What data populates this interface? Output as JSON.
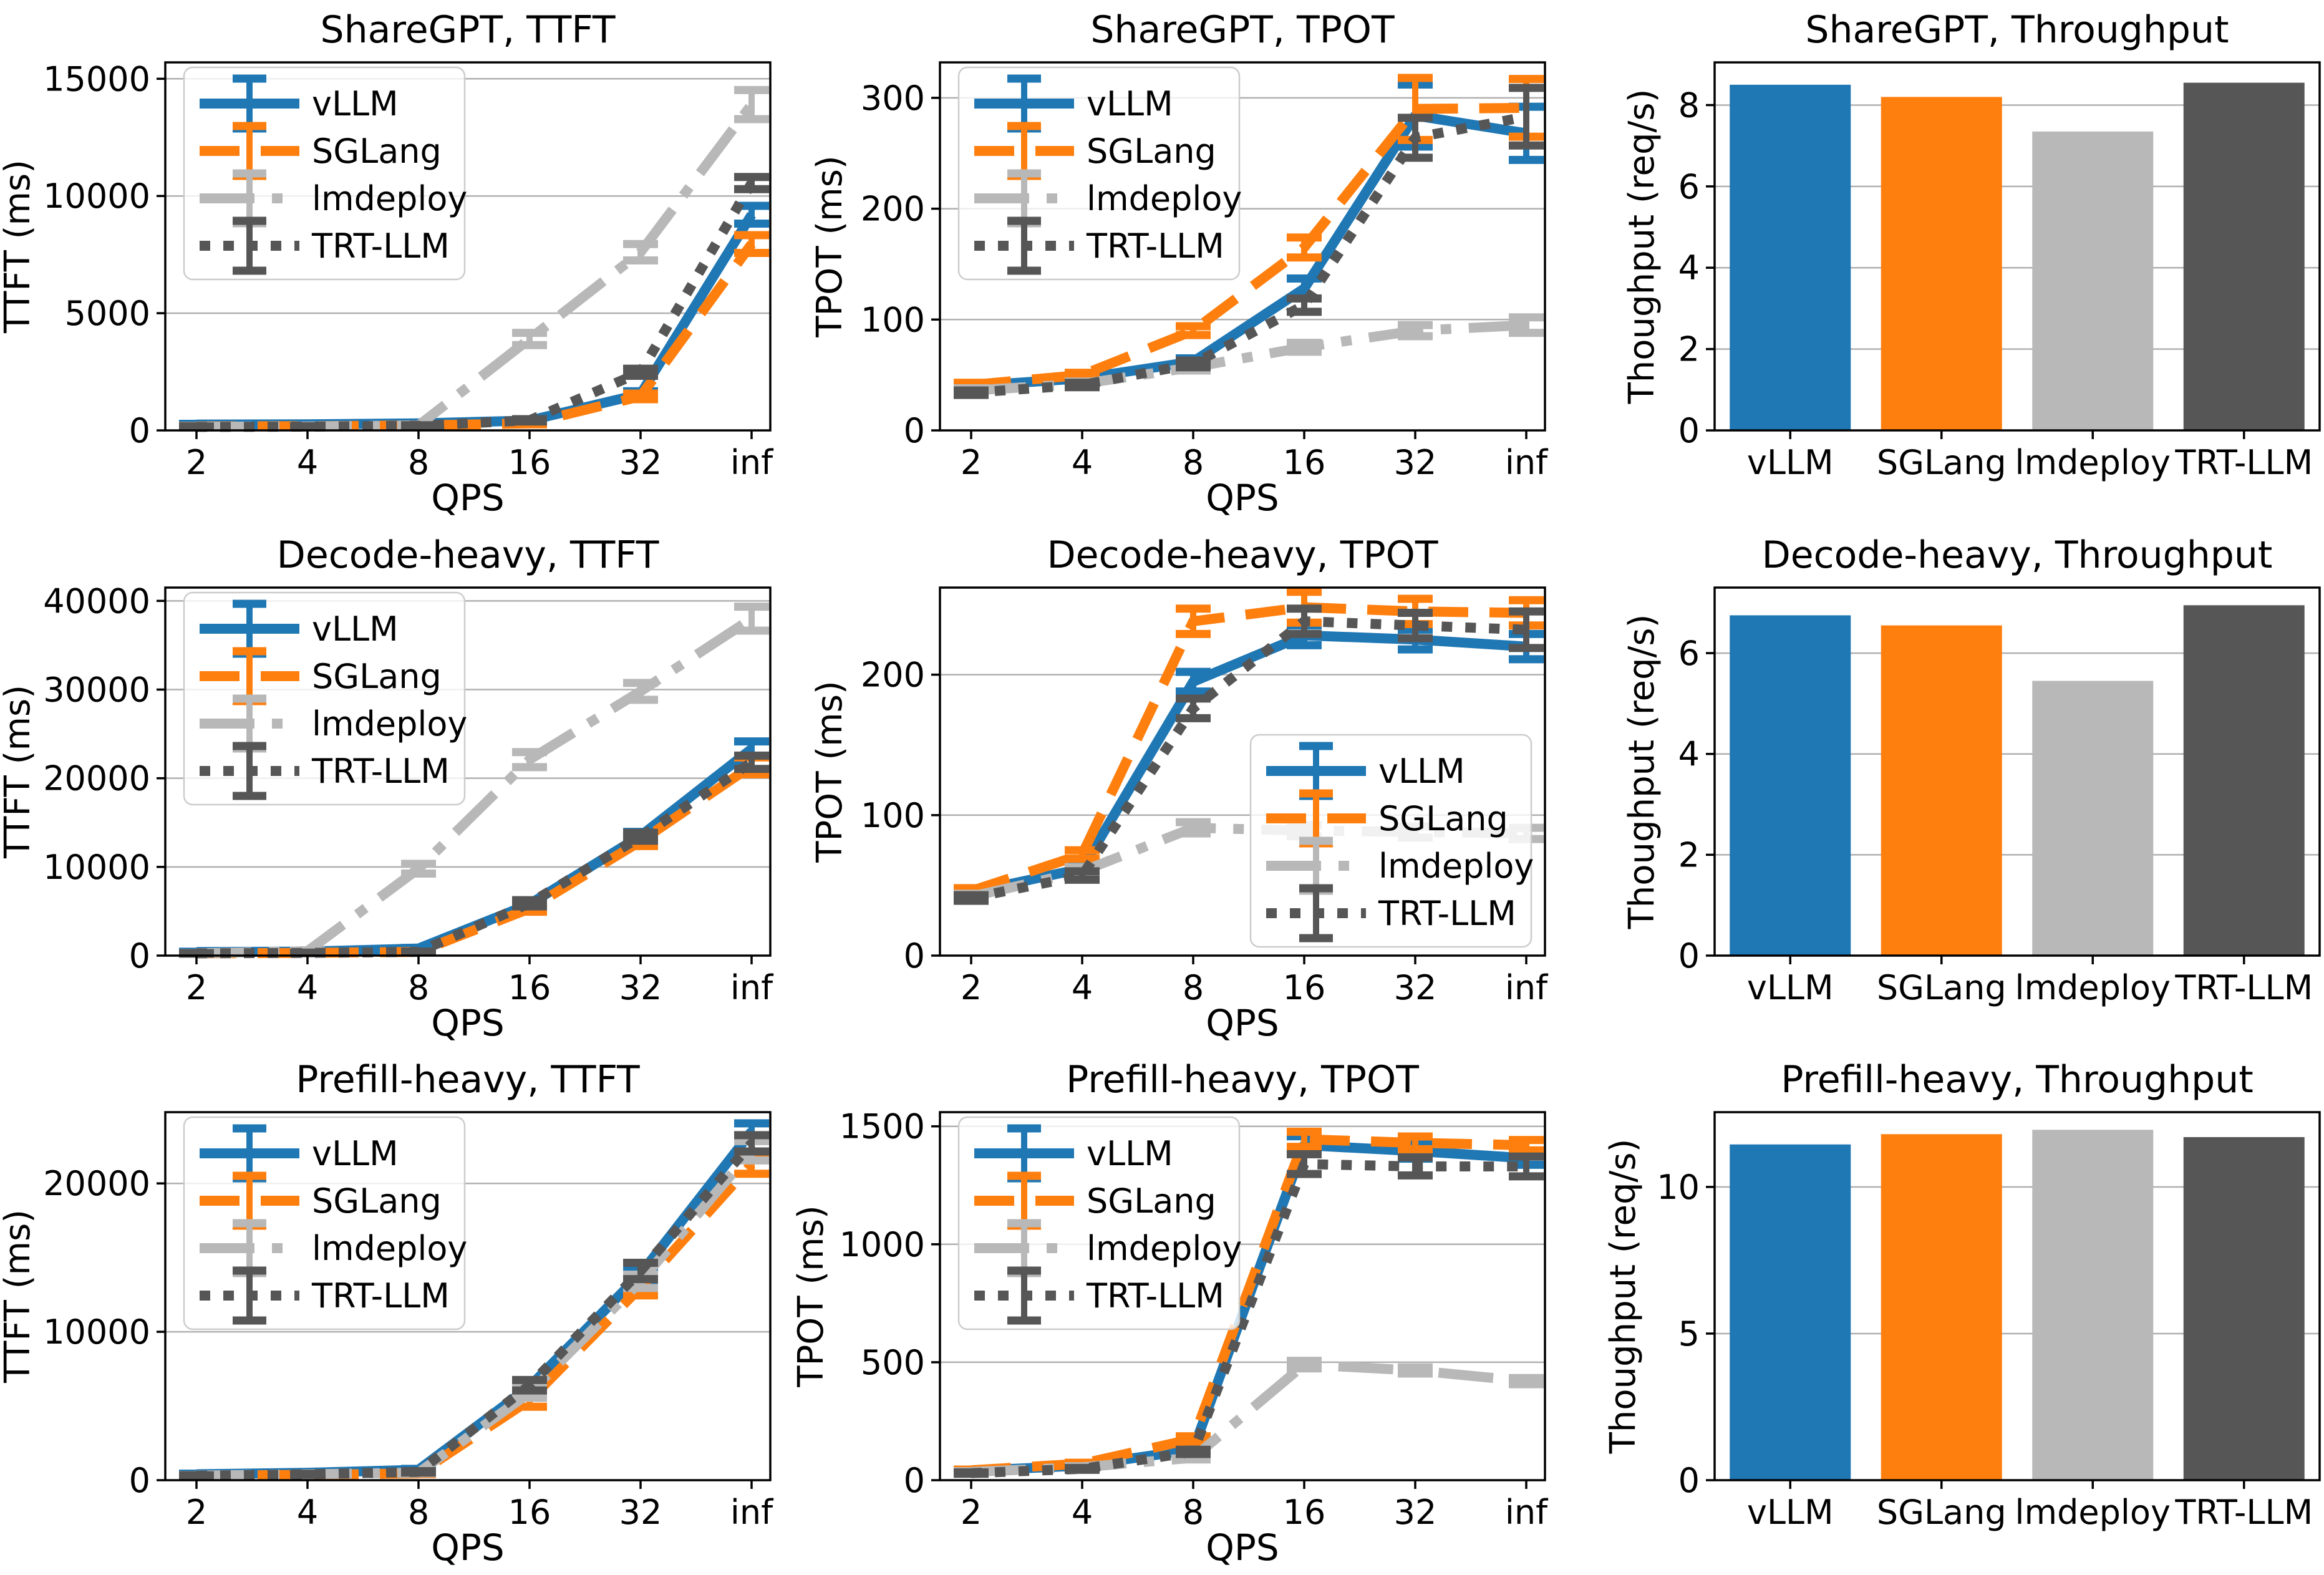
{
  "figure": {
    "background": "#ffffff",
    "grid_color": "#b0b0b0",
    "spine_color": "#000000",
    "text_color": "#000000"
  },
  "frameworks": [
    "vLLM",
    "SGLang",
    "lmdeploy",
    "TRT-LLM"
  ],
  "series_styles": {
    "vLLM": {
      "color": "#1f77b4",
      "dash": "solid"
    },
    "SGLang": {
      "color": "#ff7f0e",
      "dash": "dashed"
    },
    "lmdeploy": {
      "color": "#b8b8b8",
      "dash": "dashdot"
    },
    "TRT-LLM": {
      "color": "#565656",
      "dash": "dotted"
    }
  },
  "chart_data": [
    {
      "type": "line",
      "title": "ShareGPT, TTFT",
      "xlabel": "QPS",
      "ylabel": "TTFT (ms)",
      "x_ticklabels": [
        "2",
        "4",
        "8",
        "16",
        "32",
        "inf"
      ],
      "yticks": [
        0,
        5000,
        10000,
        15000
      ],
      "ylim": [
        0,
        15700
      ],
      "grid": true,
      "legend": {
        "show": true,
        "loc": "upper-left"
      },
      "series": [
        {
          "name": "vLLM",
          "values": [
            250,
            260,
            300,
            420,
            1550,
            9200
          ],
          "yerr": [
            30,
            30,
            30,
            60,
            120,
            380
          ]
        },
        {
          "name": "SGLang",
          "values": [
            170,
            180,
            210,
            300,
            1450,
            7950
          ],
          "yerr": [
            20,
            20,
            20,
            40,
            120,
            380
          ]
        },
        {
          "name": "lmdeploy",
          "values": [
            160,
            170,
            210,
            3900,
            7600,
            13900
          ],
          "yerr": [
            20,
            20,
            20,
            260,
            350,
            620
          ]
        },
        {
          "name": "TRT-LLM",
          "values": [
            150,
            160,
            200,
            430,
            2480,
            10550
          ],
          "yerr": [
            20,
            20,
            20,
            50,
            150,
            260
          ]
        }
      ]
    },
    {
      "type": "line",
      "title": "ShareGPT, TPOT",
      "xlabel": "QPS",
      "ylabel": "TPOT (ms)",
      "x_ticklabels": [
        "2",
        "4",
        "8",
        "16",
        "32",
        "inf"
      ],
      "yticks": [
        0,
        100,
        200,
        300
      ],
      "ylim": [
        0,
        332
      ],
      "grid": true,
      "legend": {
        "show": true,
        "loc": "upper-left"
      },
      "series": [
        {
          "name": "vLLM",
          "values": [
            40,
            47,
            62,
            128,
            284,
            268
          ],
          "yerr": [
            2,
            2,
            3,
            9,
            28,
            24
          ]
        },
        {
          "name": "SGLang",
          "values": [
            41,
            50,
            90,
            165,
            290,
            291
          ],
          "yerr": [
            2,
            2,
            4,
            9,
            28,
            26
          ]
        },
        {
          "name": "lmdeploy",
          "values": [
            36,
            42,
            57,
            75,
            90,
            95
          ],
          "yerr": [
            2,
            2,
            3,
            4,
            5,
            7
          ]
        },
        {
          "name": "TRT-LLM",
          "values": [
            34,
            41,
            60,
            113,
            264,
            283
          ],
          "yerr": [
            2,
            2,
            3,
            6,
            18,
            26
          ]
        }
      ]
    },
    {
      "type": "bar",
      "title": "ShareGPT, Throughput",
      "xlabel": "",
      "ylabel": "Thoughput (req/s)",
      "categories": [
        "vLLM",
        "SGLang",
        "lmdeploy",
        "TRT-LLM"
      ],
      "values": [
        8.5,
        8.2,
        7.35,
        8.55
      ],
      "yticks": [
        0,
        2,
        4,
        6,
        8
      ],
      "ylim": [
        0,
        9.05
      ],
      "grid": true,
      "legend": {
        "show": false
      }
    },
    {
      "type": "line",
      "title": "Decode-heavy, TTFT",
      "xlabel": "QPS",
      "ylabel": "TTFT (ms)",
      "x_ticklabels": [
        "2",
        "4",
        "8",
        "16",
        "32",
        "inf"
      ],
      "yticks": [
        0,
        10000,
        20000,
        30000,
        40000
      ],
      "ylim": [
        0,
        41500
      ],
      "grid": true,
      "legend": {
        "show": true,
        "loc": "upper-left"
      },
      "series": [
        {
          "name": "vLLM",
          "values": [
            400,
            450,
            800,
            5800,
            13500,
            23300
          ],
          "yerr": [
            40,
            40,
            60,
            350,
            450,
            850
          ]
        },
        {
          "name": "SGLang",
          "values": [
            260,
            300,
            420,
            5300,
            12900,
            21400
          ],
          "yerr": [
            30,
            30,
            40,
            350,
            550,
            950
          ]
        },
        {
          "name": "lmdeploy",
          "values": [
            260,
            500,
            9800,
            22100,
            29800,
            38000
          ],
          "yerr": [
            30,
            50,
            550,
            850,
            950,
            1350
          ]
        },
        {
          "name": "TRT-LLM",
          "values": [
            250,
            300,
            420,
            5900,
            13400,
            21800
          ],
          "yerr": [
            30,
            30,
            40,
            350,
            450,
            750
          ]
        }
      ]
    },
    {
      "type": "line",
      "title": "Decode-heavy, TPOT",
      "xlabel": "QPS",
      "ylabel": "TPOT (ms)",
      "x_ticklabels": [
        "2",
        "4",
        "8",
        "16",
        "32",
        "inf"
      ],
      "yticks": [
        0,
        100,
        200
      ],
      "ylim": [
        0,
        262
      ],
      "grid": true,
      "legend": {
        "show": true,
        "loc": "lower-right"
      },
      "series": [
        {
          "name": "vLLM",
          "values": [
            45,
            62,
            195,
            228,
            225,
            220
          ],
          "yerr": [
            2,
            3,
            7,
            7,
            7,
            9
          ]
        },
        {
          "name": "SGLang",
          "values": [
            46,
            72,
            238,
            248,
            245,
            244
          ],
          "yerr": [
            2,
            3,
            9,
            11,
            9,
            9
          ]
        },
        {
          "name": "lmdeploy",
          "values": [
            42,
            60,
            91,
            89,
            88,
            87
          ],
          "yerr": [
            2,
            3,
            4,
            4,
            4,
            4
          ]
        },
        {
          "name": "TRT-LLM",
          "values": [
            41,
            57,
            176,
            238,
            235,
            232
          ],
          "yerr": [
            2,
            3,
            7,
            9,
            9,
            13
          ]
        }
      ]
    },
    {
      "type": "bar",
      "title": "Decode-heavy, Throughput",
      "xlabel": "",
      "ylabel": "Thoughput (req/s)",
      "categories": [
        "vLLM",
        "SGLang",
        "lmdeploy",
        "TRT-LLM"
      ],
      "values": [
        6.75,
        6.55,
        5.45,
        6.95
      ],
      "yticks": [
        0,
        2,
        4,
        6
      ],
      "ylim": [
        0,
        7.3
      ],
      "grid": true,
      "legend": {
        "show": false
      }
    },
    {
      "type": "line",
      "title": "Prefill-heavy, TTFT",
      "xlabel": "QPS",
      "ylabel": "TTFT (ms)",
      "x_ticklabels": [
        "2",
        "4",
        "8",
        "16",
        "32",
        "inf"
      ],
      "yticks": [
        0,
        10000,
        20000
      ],
      "ylim": [
        0,
        24800
      ],
      "grid": true,
      "legend": {
        "show": true,
        "loc": "upper-left"
      },
      "series": [
        {
          "name": "vLLM",
          "values": [
            400,
            500,
            700,
            6300,
            13900,
            23500
          ],
          "yerr": [
            40,
            40,
            60,
            350,
            450,
            550
          ]
        },
        {
          "name": "SGLang",
          "values": [
            310,
            360,
            460,
            5400,
            13000,
            21300
          ],
          "yerr": [
            30,
            30,
            50,
            450,
            550,
            650
          ]
        },
        {
          "name": "lmdeploy",
          "values": [
            310,
            400,
            510,
            5900,
            13400,
            22200
          ],
          "yerr": [
            30,
            30,
            50,
            350,
            450,
            650
          ]
        },
        {
          "name": "TRT-LLM",
          "values": [
            300,
            400,
            560,
            6400,
            14100,
            22700
          ],
          "yerr": [
            30,
            30,
            50,
            350,
            550,
            550
          ]
        }
      ]
    },
    {
      "type": "line",
      "title": "Prefill-heavy, TPOT",
      "xlabel": "QPS",
      "ylabel": "TPOT (ms)",
      "x_ticklabels": [
        "2",
        "4",
        "8",
        "16",
        "32",
        "inf"
      ],
      "yticks": [
        0,
        500,
        1000,
        1500
      ],
      "ylim": [
        0,
        1560
      ],
      "grid": true,
      "legend": {
        "show": true,
        "loc": "upper-left"
      },
      "series": [
        {
          "name": "vLLM",
          "values": [
            40,
            62,
            130,
            1420,
            1395,
            1365
          ],
          "yerr": [
            3,
            4,
            9,
            38,
            32,
            28
          ]
        },
        {
          "name": "SGLang",
          "values": [
            42,
            70,
            175,
            1445,
            1430,
            1420
          ],
          "yerr": [
            3,
            4,
            11,
            32,
            27,
            22
          ]
        },
        {
          "name": "lmdeploy",
          "values": [
            35,
            55,
            95,
            490,
            465,
            420
          ],
          "yerr": [
            3,
            4,
            7,
            16,
            13,
            13
          ]
        },
        {
          "name": "TRT-LLM",
          "values": [
            30,
            48,
            120,
            1340,
            1330,
            1330
          ],
          "yerr": [
            3,
            4,
            9,
            42,
            38,
            42
          ]
        }
      ]
    },
    {
      "type": "bar",
      "title": "Prefill-heavy, Throughput",
      "xlabel": "",
      "ylabel": "Thoughput (req/s)",
      "categories": [
        "vLLM",
        "SGLang",
        "lmdeploy",
        "TRT-LLM"
      ],
      "values": [
        11.45,
        11.8,
        11.95,
        11.7
      ],
      "yticks": [
        0,
        5,
        10
      ],
      "ylim": [
        0,
        12.55
      ],
      "grid": true,
      "legend": {
        "show": false
      }
    }
  ]
}
